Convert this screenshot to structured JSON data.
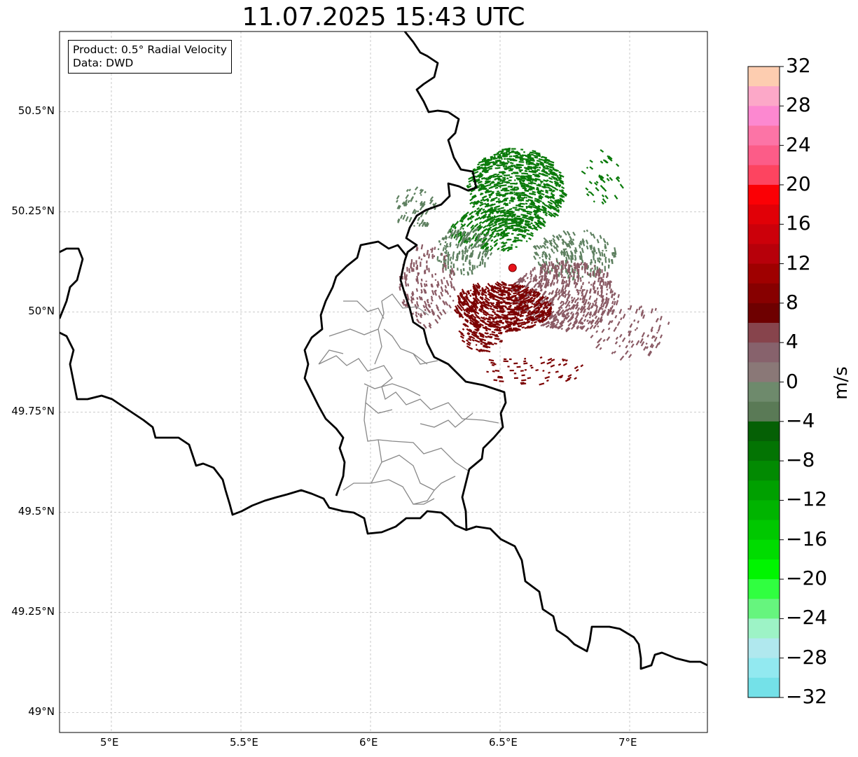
{
  "title": "11.07.2025 15:43 UTC",
  "legend": {
    "product": "Product: 0.5° Radial Velocity",
    "source": "Data: DWD"
  },
  "map": {
    "lon_range": [
      4.8,
      7.3
    ],
    "lat_range": [
      48.95,
      50.7
    ],
    "grid": true,
    "x_ticks": [
      "5°E",
      "5.5°E",
      "6°E",
      "6.5°E",
      "7°E"
    ],
    "y_ticks": [
      "50.5°N",
      "50.25°N",
      "50°N",
      "49.75°N",
      "49.5°N",
      "49.25°N",
      "49°N"
    ],
    "radar_site": {
      "lon": 6.548,
      "lat": 50.11,
      "color": "#e8121a"
    }
  },
  "colorbar": {
    "label": "m/s",
    "min": -32,
    "max": 32,
    "tick_labels": [
      "32",
      "28",
      "24",
      "20",
      "16",
      "12",
      "8",
      "4",
      "0",
      "−4",
      "−8",
      "−12",
      "−16",
      "−20",
      "−24",
      "−28",
      "−32"
    ],
    "colors_top_to_bottom": [
      "#fdcdb0",
      "#fca8c8",
      "#fc88d0",
      "#fc74a6",
      "#fc5c88",
      "#fd4460",
      "#fb0005",
      "#e10007",
      "#cc000a",
      "#b7000a",
      "#9f0000",
      "#870000",
      "#6e0000",
      "#87444c",
      "#87626c",
      "#8a7877",
      "#6e8a6c",
      "#5a7a56",
      "#056005",
      "#037403",
      "#028a02",
      "#00a000",
      "#00b400",
      "#00c800",
      "#00dc00",
      "#00f500",
      "#30ff40",
      "#66f57e",
      "#9df3c6",
      "#b0e8ee",
      "#92e9f0",
      "#74e1e8"
    ]
  },
  "echo_colors": {
    "outbound_strong": "#7b0000",
    "outbound_weak": "#8a5a64",
    "inbound_strong": "#0a7a0a",
    "inbound_weak": "#5e8060"
  }
}
